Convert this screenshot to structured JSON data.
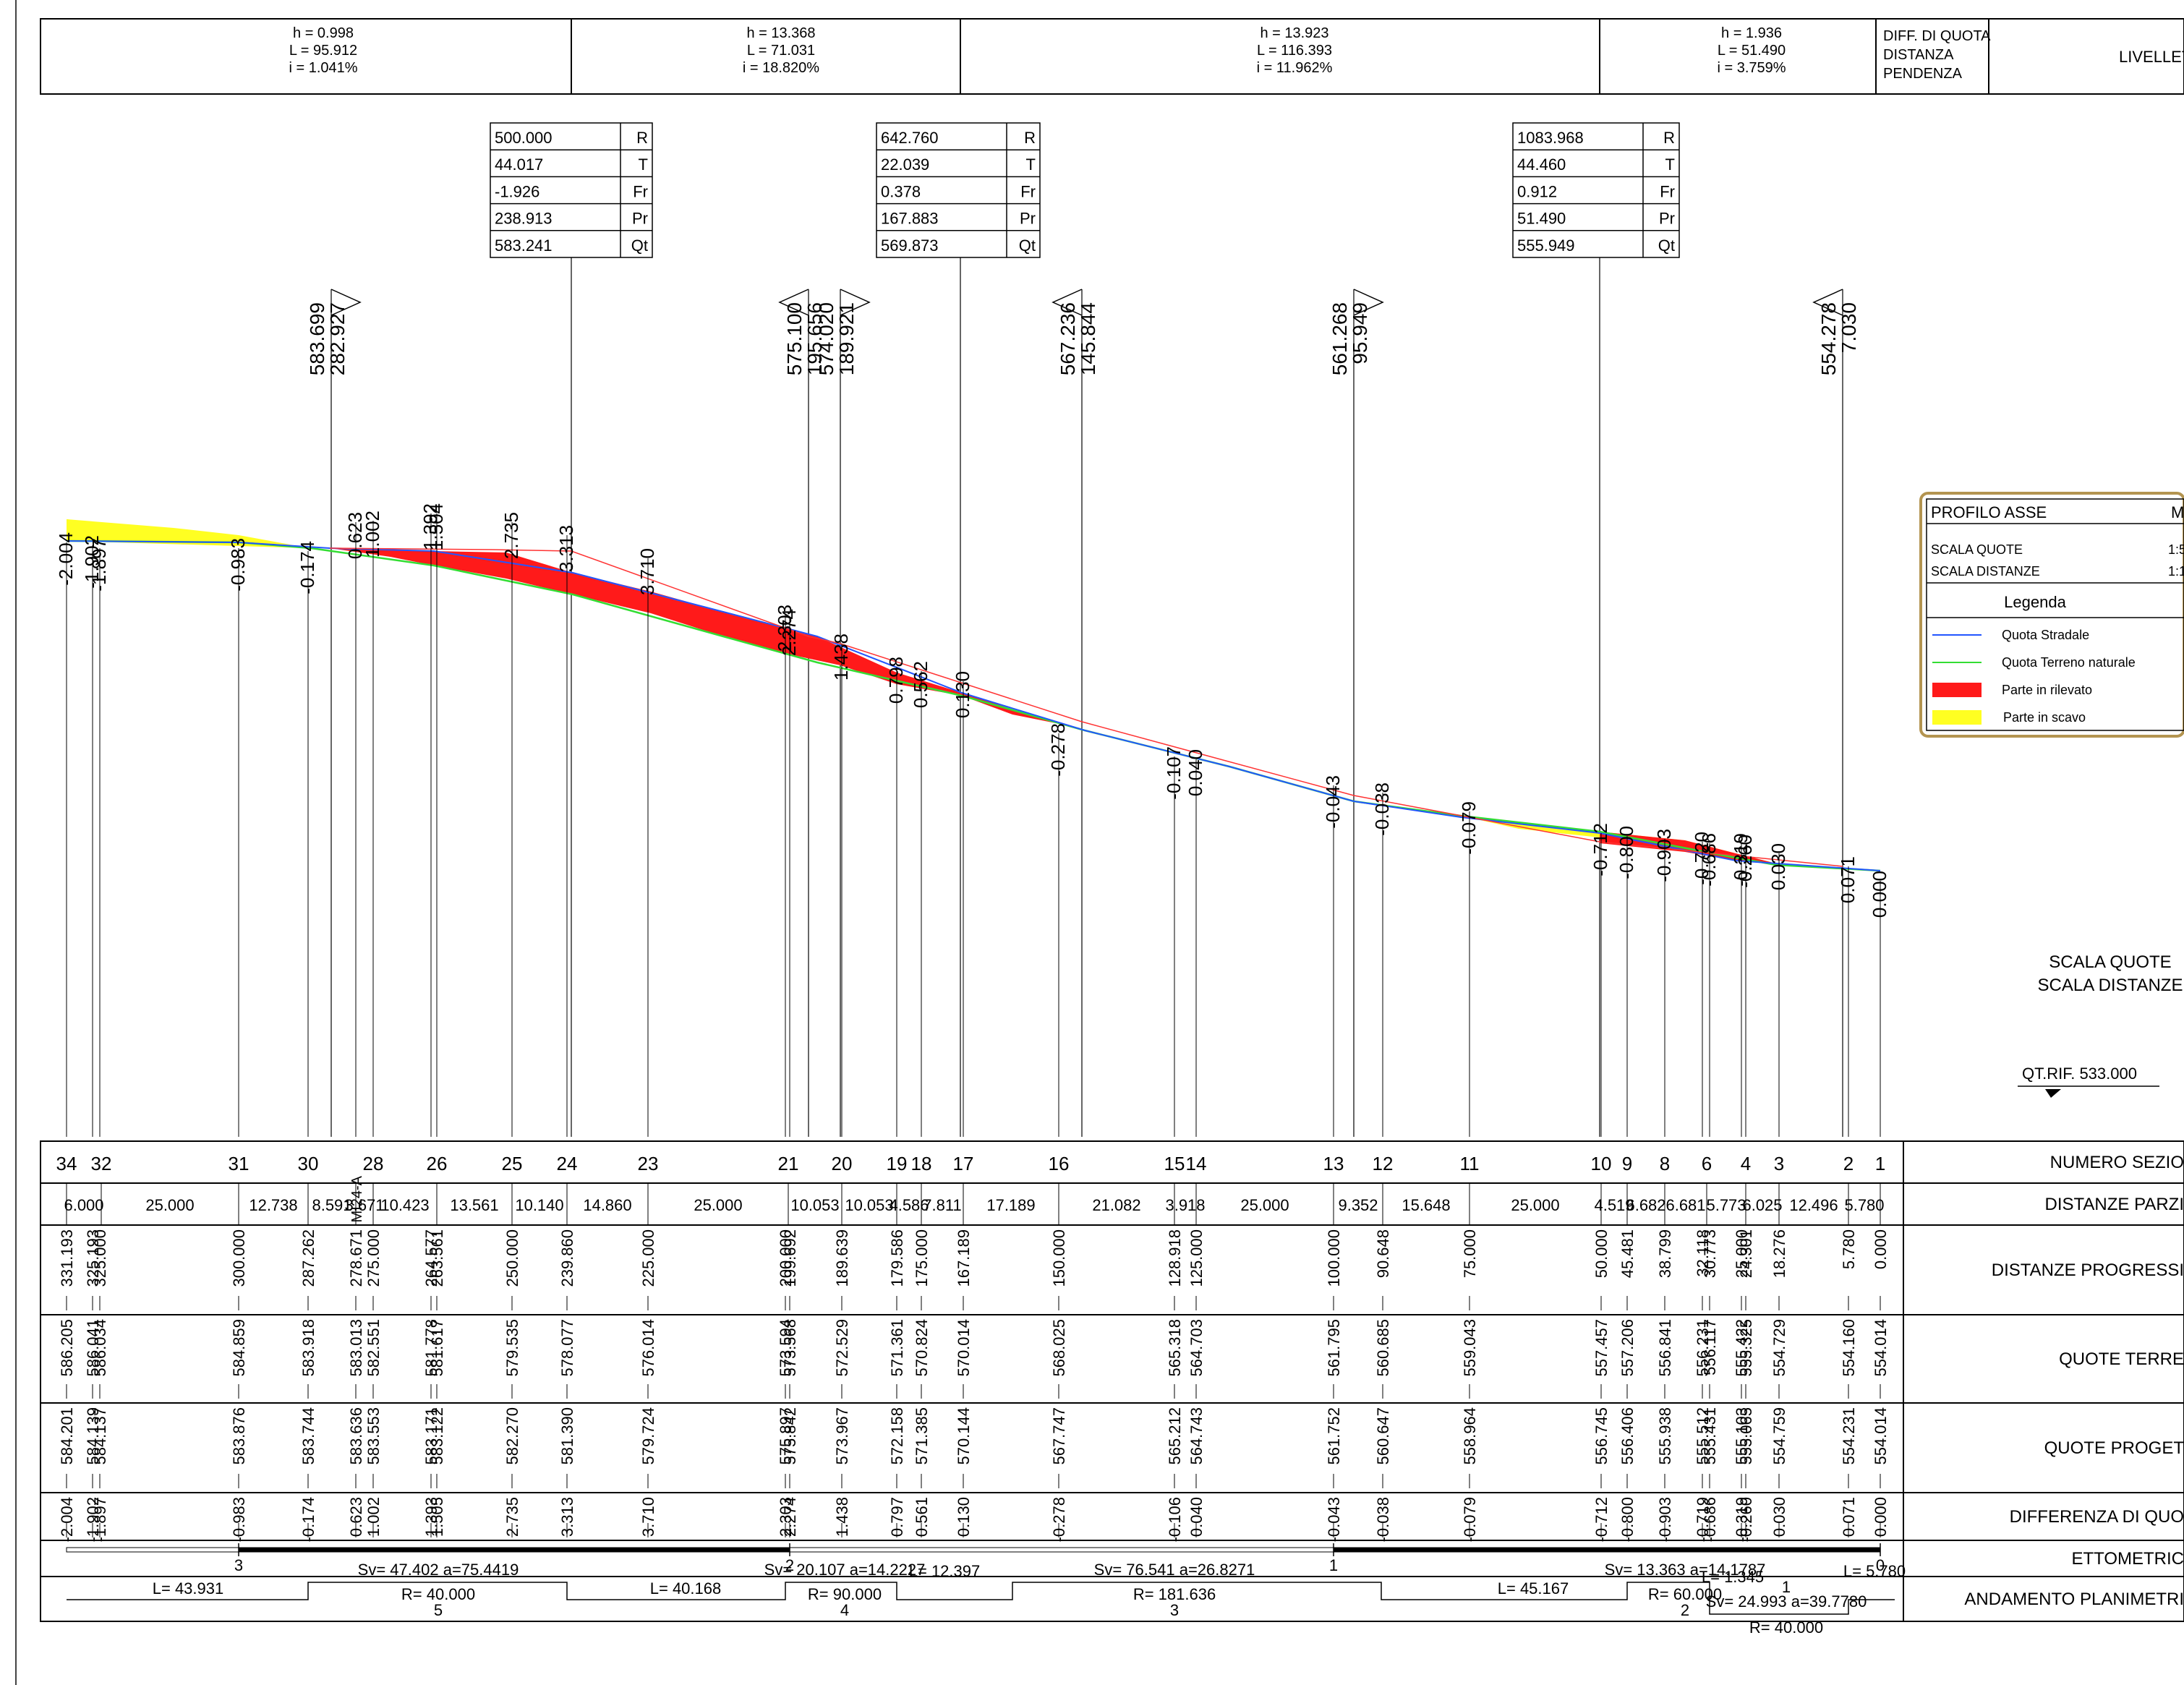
{
  "grades": [
    {
      "h": "h = 0.998",
      "L": "L = 95.912",
      "i": "i = 1.041%"
    },
    {
      "h": "h = 13.368",
      "L": "L = 71.031",
      "i": "i = 18.820%"
    },
    {
      "h": "h = 13.923",
      "L": "L = 116.393",
      "i": "i = 11.962%"
    },
    {
      "h": "h = 1.936",
      "L": "L = 51.490",
      "i": "i = 3.759%"
    }
  ],
  "grade_header_labels": [
    "DIFF. DI QUOTA",
    "DISTANZA",
    "PENDENZA"
  ],
  "grade_header_title": "LIVELLET",
  "curve_boxes": [
    {
      "values": [
        "500.000",
        "44.017",
        "-1.926",
        "238.913",
        "583.241"
      ],
      "keys": [
        "R",
        "T",
        "Fr",
        "Pr",
        "Qt"
      ]
    },
    {
      "values": [
        "642.760",
        "22.039",
        "0.378",
        "167.883",
        "569.873"
      ],
      "keys": [
        "R",
        "T",
        "Fr",
        "Pr",
        "Qt"
      ]
    },
    {
      "values": [
        "1083.968",
        "44.460",
        "0.912",
        "51.490",
        "555.949"
      ],
      "keys": [
        "R",
        "T",
        "Fr",
        "Pr",
        "Qt"
      ]
    }
  ],
  "vertices": [
    {
      "q": "583.699",
      "d": "282.927"
    },
    {
      "q": "575.100",
      "d": "195.656"
    },
    {
      "q": "574.020",
      "d": "189.921"
    },
    {
      "q": "567.236",
      "d": "145.844"
    },
    {
      "q": "561.268",
      "d": "95.949"
    },
    {
      "q": "554.278",
      "d": "7.030"
    }
  ],
  "profile_diffs": [
    "-2.004",
    "-1.902",
    "-1.897",
    "-0.983",
    "-0.174",
    "0.623",
    "1.002",
    "1.392",
    "1.504",
    "2.735",
    "3.313",
    "3.710",
    "2.303",
    "2.274",
    "1.438",
    "0.798",
    "0.562",
    "0.130",
    "-0.278",
    "-0.107",
    "0.040",
    "-0.043",
    "-0.038",
    "-0.079",
    "-0.712",
    "-0.800",
    "-0.903",
    "-0.720",
    "-0.686",
    "-0.319",
    "-0.260",
    "0.030",
    "0.071",
    "0.000"
  ],
  "legend": {
    "title": "PROFILO ASSE",
    "title_right": "M",
    "scale_quote": "SCALA QUOTE",
    "scale_quote_val": "1:5",
    "scale_dist": "SCALA DISTANZE",
    "scale_dist_val": "1:1",
    "legend_title": "Legenda",
    "items": [
      {
        "label": "Quota Stradale",
        "color": "#2255ff"
      },
      {
        "label": "Quota Terreno naturale",
        "color": "#33dd33"
      },
      {
        "label": "Parte in rilevato",
        "color": "#ff1a1a"
      },
      {
        "label": "Parte in scavo",
        "color": "#ffff22"
      }
    ]
  },
  "scale_label_1": "SCALA QUOTE",
  "scale_label_2": "SCALA DISTANZE",
  "qt_rif": "QT.RIF. 533.000",
  "row_titles": [
    "NUMERO SEZIO",
    "DISTANZE PARZI",
    "DISTANZE PROGRESSI",
    "QUOTE TERRE",
    "QUOTE PROGET",
    "DIFFERENZA DI QUO",
    "ETTOMETRIC",
    "ANDAMENTO PLANIMETRI"
  ],
  "section_numbers": [
    "34",
    "32",
    "31",
    "30",
    "MI24-A",
    "28",
    "26",
    "25",
    "24",
    "23",
    "21",
    "20",
    "19",
    "18",
    "17",
    "16",
    "15",
    "14",
    "13",
    "12",
    "11",
    "10",
    "9",
    "8",
    "6",
    "4",
    "3",
    "2",
    "1"
  ],
  "partial_distances": [
    "6.000",
    "25.000",
    "12.738",
    "8.591",
    "3.671",
    "10.423",
    "13.561",
    "10.140",
    "14.860",
    "25.000",
    "10.053",
    "10.053",
    "4.586",
    "7.811",
    "17.189",
    "21.082",
    "3.918",
    "25.000",
    "9.352",
    "15.648",
    "25.000",
    "4.519",
    "6.682",
    "6.681",
    "5.773",
    "6.025",
    "12.496",
    "5.780"
  ],
  "progressive": [
    "331.193",
    "325.193",
    "325.000",
    "300.000",
    "287.262",
    "278.671",
    "275.000",
    "264.577",
    "263.561",
    "250.000",
    "239.860",
    "225.000",
    "200.000",
    "199.692",
    "189.639",
    "179.586",
    "175.000",
    "167.189",
    "150.000",
    "128.918",
    "125.000",
    "100.000",
    "90.648",
    "75.000",
    "50.000",
    "45.481",
    "38.799",
    "32.118",
    "30.773",
    "25.000",
    "24.301",
    "18.276",
    "5.780",
    "0.000"
  ],
  "terrain": [
    "586.205",
    "586.041",
    "586.034",
    "584.859",
    "583.918",
    "583.013",
    "582.551",
    "581.778",
    "581.617",
    "579.535",
    "578.077",
    "576.014",
    "573.594",
    "573.568",
    "572.529",
    "571.361",
    "570.824",
    "570.014",
    "568.025",
    "565.318",
    "564.703",
    "561.795",
    "560.685",
    "559.043",
    "557.457",
    "557.206",
    "556.841",
    "556.231",
    "556.117",
    "555.422",
    "555.325",
    "554.729",
    "554.160",
    "554.014"
  ],
  "project": [
    "584.201",
    "584.139",
    "584.137",
    "583.876",
    "583.744",
    "583.636",
    "583.553",
    "583.171",
    "583.122",
    "582.270",
    "581.390",
    "579.724",
    "575.897",
    "575.842",
    "573.967",
    "572.158",
    "571.385",
    "570.144",
    "567.747",
    "565.212",
    "564.743",
    "561.752",
    "560.647",
    "558.964",
    "556.745",
    "556.406",
    "555.938",
    "555.512",
    "555.431",
    "555.103",
    "555.065",
    "554.759",
    "554.231",
    "554.014"
  ],
  "differences": [
    "-2.004",
    "-1.902",
    "-1.897",
    "-0.983",
    "-0.174",
    "0.623",
    "1.002",
    "1.393",
    "1.505",
    "2.735",
    "3.313",
    "3.710",
    "2.303",
    "2.274",
    "1.438",
    "0.797",
    "0.561",
    "0.130",
    "-0.278",
    "-0.106",
    "0.040",
    "-0.043",
    "-0.038",
    "-0.079",
    "-0.712",
    "-0.800",
    "-0.903",
    "-0.719",
    "-0.686",
    "-0.319",
    "-0.260",
    "0.030",
    "0.071",
    "0.000"
  ],
  "ettometric": [
    "3",
    "2",
    "1",
    "0"
  ],
  "planimetric": {
    "straights": [
      "L= 43.931",
      "L= 40.168",
      "L= 12.397",
      "L= 45.167",
      "L= 5.780"
    ],
    "curves": [
      {
        "sv": "Sv= 47.402  a=75.4419",
        "r": "R= 40.000",
        "n": "5"
      },
      {
        "sv": "Sv= 20.107  a=14.2227",
        "r": "R= 90.000",
        "n": "4"
      },
      {
        "sv": "Sv= 76.541  a=26.8271",
        "r": "R= 181.636",
        "n": "3"
      },
      {
        "sv": "Sv= 13.363  a=14.1787",
        "r": "R= 60.000",
        "n": "2"
      },
      {
        "sv": "Sv= 24.993  a=39.7780",
        "r": "R= 40.000",
        "n": "1"
      }
    ],
    "mid_label": "L= 1.345"
  }
}
